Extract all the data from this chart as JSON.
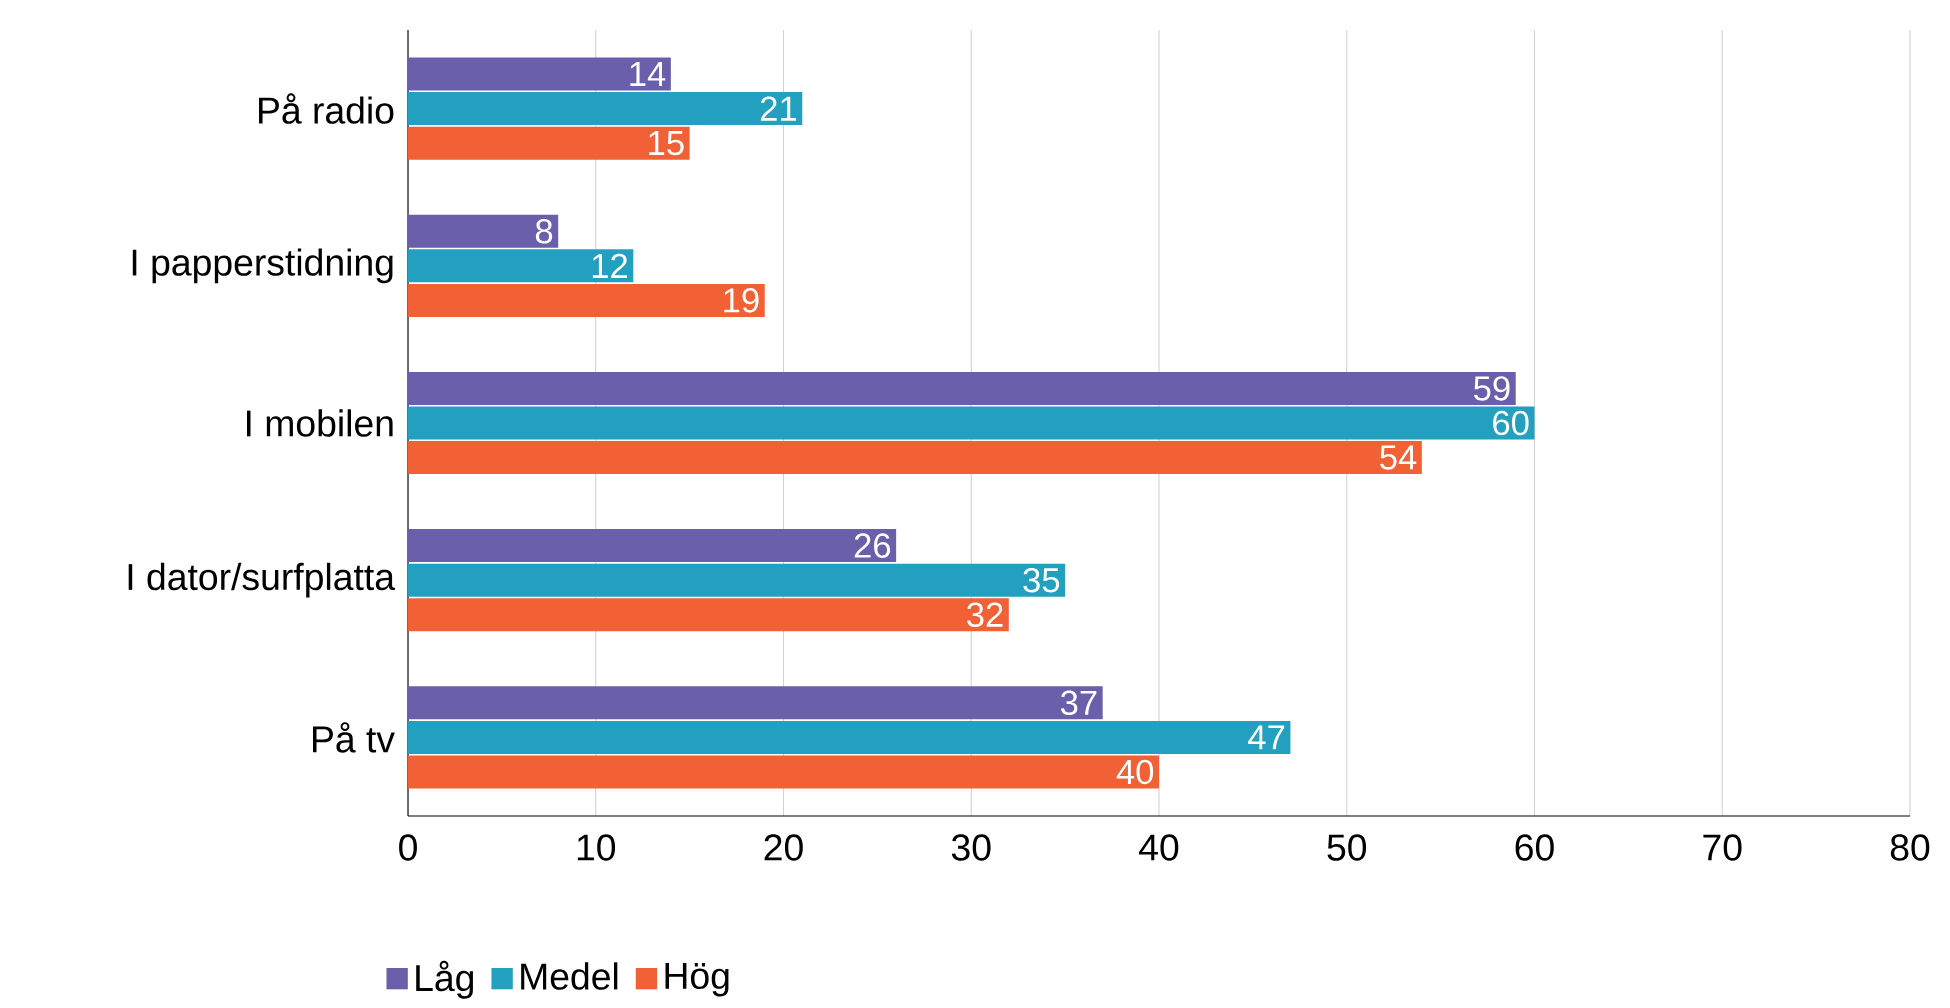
{
  "chart_data": {
    "type": "bar",
    "orientation": "horizontal",
    "categories": [
      "På radio",
      "I papperstidning",
      "I mobilen",
      "I dator/surfplatta",
      "På tv"
    ],
    "series": [
      {
        "name": "Låg",
        "color": "#6a5fab",
        "values": [
          14,
          8,
          59,
          26,
          37
        ]
      },
      {
        "name": "Medel",
        "color": "#23a0bf",
        "values": [
          21,
          12,
          60,
          35,
          47
        ]
      },
      {
        "name": "Hög",
        "color": "#f26135",
        "values": [
          15,
          19,
          54,
          32,
          40
        ]
      }
    ],
    "xlim": [
      0,
      80
    ],
    "xticks": [
      0,
      10,
      20,
      30,
      40,
      50,
      60,
      70,
      80
    ],
    "grid": "x",
    "legend": "bottom left",
    "data_labels": true
  }
}
